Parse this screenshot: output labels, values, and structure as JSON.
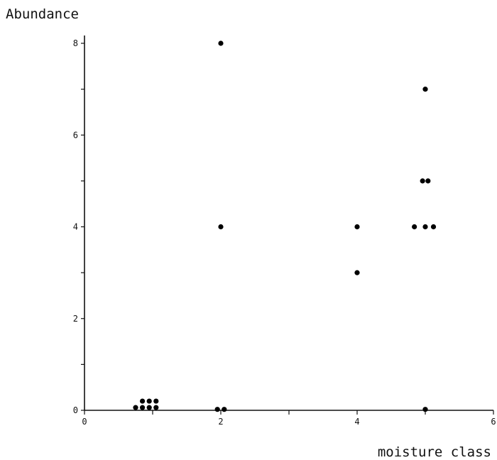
{
  "chart_data": {
    "type": "scatter",
    "title": "",
    "xlabel": "moisture class",
    "ylabel": "Abundance",
    "xlim": [
      0,
      6
    ],
    "ylim": [
      0,
      8
    ],
    "grid": false,
    "x_ticks": [
      0,
      2,
      4,
      6
    ],
    "y_ticks": [
      0,
      2,
      4,
      6,
      8
    ],
    "x_tick_labels": [
      "0",
      "2",
      "4",
      "6"
    ],
    "y_tick_labels": [
      "0",
      "2",
      "4",
      "6",
      "8"
    ],
    "points": [
      {
        "x": 0.75,
        "y": 0.06
      },
      {
        "x": 0.85,
        "y": 0.06
      },
      {
        "x": 0.95,
        "y": 0.06
      },
      {
        "x": 1.05,
        "y": 0.06
      },
      {
        "x": 0.85,
        "y": 0.2
      },
      {
        "x": 0.95,
        "y": 0.2
      },
      {
        "x": 1.05,
        "y": 0.2
      },
      {
        "x": 1.95,
        "y": 0.02
      },
      {
        "x": 2.05,
        "y": 0.02
      },
      {
        "x": 2.0,
        "y": 4.0
      },
      {
        "x": 2.0,
        "y": 8.0
      },
      {
        "x": 4.0,
        "y": 3.0
      },
      {
        "x": 4.0,
        "y": 4.0
      },
      {
        "x": 4.84,
        "y": 4.0
      },
      {
        "x": 5.0,
        "y": 4.0
      },
      {
        "x": 5.12,
        "y": 4.0
      },
      {
        "x": 4.96,
        "y": 5.0
      },
      {
        "x": 5.04,
        "y": 5.0
      },
      {
        "x": 5.0,
        "y": 7.0
      },
      {
        "x": 5.0,
        "y": 0.02
      }
    ]
  }
}
